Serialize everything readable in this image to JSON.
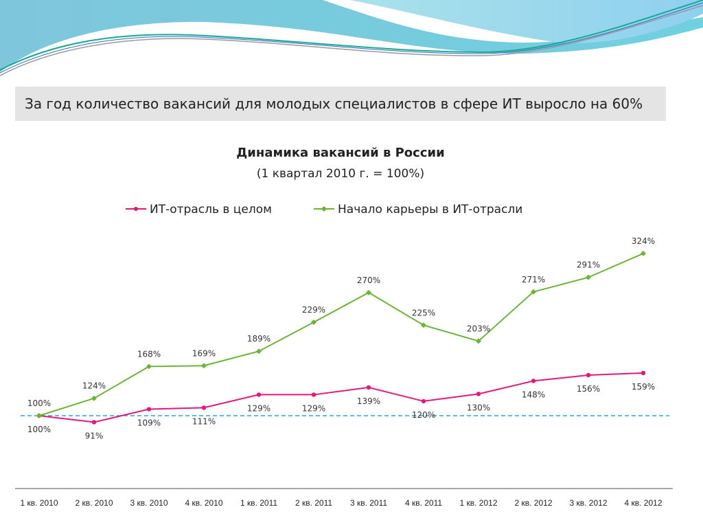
{
  "slide_title": "За год количество вакансий для молодых специалистов в сфере ИТ выросло на 60%",
  "chart_data": {
    "type": "line",
    "title": "Динамика вакансий в России",
    "subtitle": "(1 квартал 2010 г. = 100%)",
    "categories": [
      "1 кв. 2010",
      "2 кв. 2010",
      "3 кв. 2010",
      "4 кв. 2010",
      "1 кв. 2011",
      "2 кв. 2011",
      "3 кв. 2011",
      "4 кв. 2011",
      "1 кв. 2012",
      "2 кв. 2012",
      "3 кв. 2012",
      "4 кв. 2012"
    ],
    "series": [
      {
        "name": "ИТ-отрасль в целом",
        "color": "#e4187c",
        "values": [
          100,
          91,
          109,
          111,
          129,
          129,
          139,
          120,
          130,
          148,
          156,
          159
        ]
      },
      {
        "name": "Начало карьеры в ИТ-отрасли",
        "color": "#6bb535",
        "values": [
          100,
          124,
          168,
          169,
          189,
          229,
          270,
          225,
          203,
          271,
          291,
          324
        ]
      }
    ],
    "baseline": 100,
    "baseline_color": "#1ea6d6",
    "value_suffix": "%",
    "legend": "top",
    "xlabel": "",
    "ylabel": "",
    "ylim": [
      91,
      324
    ],
    "grid": false
  }
}
